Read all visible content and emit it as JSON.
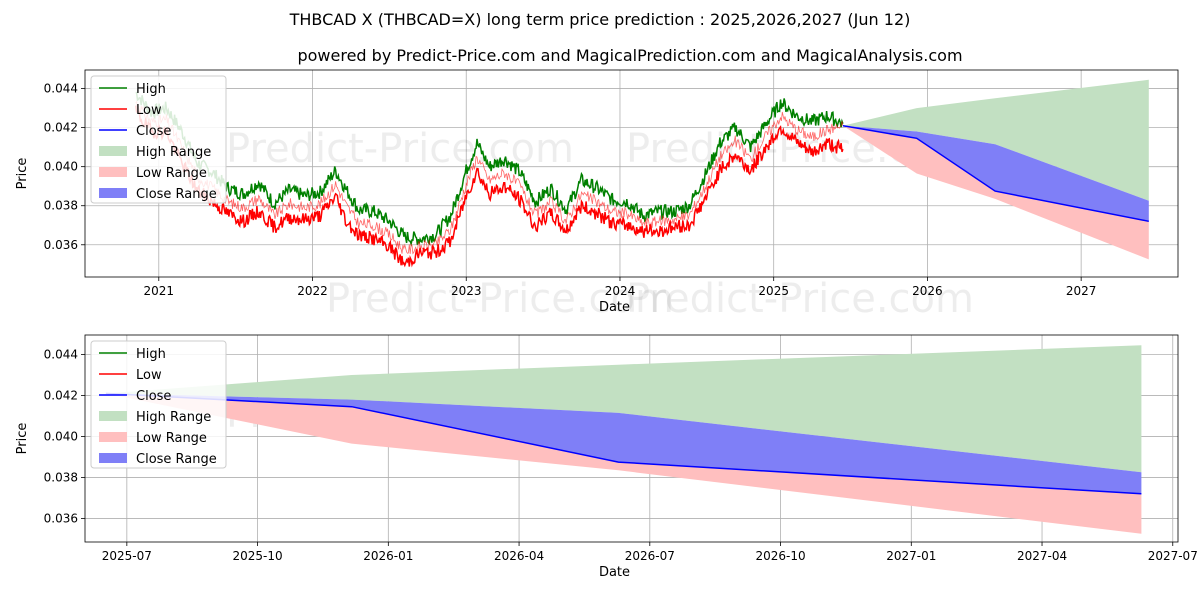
{
  "title": "THBCAD X (THBCAD=X) long term price prediction : 2025,2026,2027 (Jun 12)",
  "subtitle": "powered by Predict-Price.com and MagicalPrediction.com and MagicalAnalysis.com",
  "watermark": "Predict-Price.com",
  "colors": {
    "high": "#008000",
    "low": "#ff0000",
    "close": "#0000ff",
    "high_range": "#c2e0c2",
    "low_range": "#ffbfbf",
    "close_range": "#7f7ff7",
    "grid": "#b0b0b0"
  },
  "chart_data": [
    {
      "type": "line",
      "name": "long-term",
      "xlabel": "Date",
      "ylabel": "Price",
      "xlim": [
        2020.52,
        2027.63
      ],
      "ylim": [
        0.03435,
        0.04495
      ],
      "xticks": [
        {
          "value": 2021,
          "label": "2021"
        },
        {
          "value": 2022,
          "label": "2022"
        },
        {
          "value": 2023,
          "label": "2023"
        },
        {
          "value": 2024,
          "label": "2024"
        },
        {
          "value": 2025,
          "label": "2025"
        },
        {
          "value": 2026,
          "label": "2026"
        },
        {
          "value": 2027,
          "label": "2027"
        }
      ],
      "yticks": [
        {
          "value": 0.036,
          "label": "0.036"
        },
        {
          "value": 0.038,
          "label": "0.038"
        },
        {
          "value": 0.04,
          "label": "0.040"
        },
        {
          "value": 0.042,
          "label": "0.042"
        },
        {
          "value": 0.044,
          "label": "0.044"
        }
      ],
      "legend": [
        "High",
        "Low",
        "Close",
        "High Range",
        "Low Range",
        "Close Range"
      ],
      "legend_position": "upper-left",
      "history": {
        "x": [
          2020.85,
          2020.95,
          2021.05,
          2021.15,
          2021.25,
          2021.35,
          2021.45,
          2021.55,
          2021.65,
          2021.75,
          2021.85,
          2021.95,
          2022.05,
          2022.15,
          2022.22,
          2022.3,
          2022.4,
          2022.5,
          2022.6,
          2022.7,
          2022.8,
          2022.9,
          2023.0,
          2023.07,
          2023.15,
          2023.25,
          2023.35,
          2023.45,
          2023.55,
          2023.65,
          2023.75,
          2023.85,
          2023.95,
          2024.05,
          2024.15,
          2024.25,
          2024.35,
          2024.45,
          2024.55,
          2024.65,
          2024.75,
          2024.85,
          2024.95,
          2025.05,
          2025.15,
          2025.25,
          2025.35,
          2025.45
        ],
        "high": [
          0.0438,
          0.0428,
          0.043,
          0.0418,
          0.0402,
          0.0397,
          0.0389,
          0.0386,
          0.0392,
          0.0381,
          0.0388,
          0.0385,
          0.0387,
          0.0398,
          0.0388,
          0.0378,
          0.0377,
          0.0372,
          0.0364,
          0.0363,
          0.0365,
          0.0375,
          0.0398,
          0.0412,
          0.04,
          0.0404,
          0.0397,
          0.0382,
          0.0389,
          0.0378,
          0.0393,
          0.0389,
          0.0383,
          0.0382,
          0.0375,
          0.0377,
          0.0377,
          0.038,
          0.0395,
          0.0412,
          0.042,
          0.041,
          0.0422,
          0.0433,
          0.0426,
          0.0423,
          0.0426,
          0.0422
        ],
        "low": [
          0.0428,
          0.0418,
          0.0418,
          0.0402,
          0.0388,
          0.0382,
          0.0376,
          0.0372,
          0.0377,
          0.0369,
          0.0374,
          0.0373,
          0.0375,
          0.0385,
          0.0372,
          0.0365,
          0.0363,
          0.0359,
          0.035,
          0.0356,
          0.0356,
          0.0362,
          0.0385,
          0.0398,
          0.0386,
          0.039,
          0.0383,
          0.0369,
          0.0376,
          0.0367,
          0.038,
          0.0376,
          0.0371,
          0.037,
          0.0367,
          0.0367,
          0.0369,
          0.037,
          0.0383,
          0.0398,
          0.0406,
          0.0398,
          0.041,
          0.042,
          0.0412,
          0.0407,
          0.0412,
          0.0409
        ],
        "close": [
          0.0433,
          0.0423,
          0.0424,
          0.041,
          0.0395,
          0.0389,
          0.0382,
          0.0379,
          0.0384,
          0.0375,
          0.0381,
          0.0379,
          0.0381,
          0.0391,
          0.038,
          0.0371,
          0.037,
          0.0365,
          0.0357,
          0.0359,
          0.036,
          0.0368,
          0.0391,
          0.0405,
          0.0393,
          0.0397,
          0.039,
          0.0375,
          0.0382,
          0.0372,
          0.0386,
          0.0382,
          0.0377,
          0.0376,
          0.0371,
          0.0372,
          0.0373,
          0.0375,
          0.0389,
          0.0405,
          0.0413,
          0.0404,
          0.0416,
          0.0426,
          0.0419,
          0.0415,
          0.0419,
          0.0421
        ]
      },
      "forecast": {
        "x": [
          2025.45,
          2025.93,
          2026.44,
          2027.44
        ],
        "close": [
          0.0421,
          0.04145,
          0.03875,
          0.0372
        ],
        "close_range_upper": [
          0.0421,
          0.0418,
          0.04115,
          0.03825
        ],
        "close_range_lower": [
          0.0421,
          0.04145,
          0.03875,
          0.0372
        ],
        "high_range_upper": [
          0.0421,
          0.043,
          0.0435,
          0.04445
        ],
        "low_range_lower": [
          0.0421,
          0.03965,
          0.03835,
          0.03525
        ]
      }
    },
    {
      "type": "line",
      "name": "forecast-zoom",
      "xlabel": "Date",
      "ylabel": "Price",
      "xlim": [
        2025.42,
        2027.51
      ],
      "ylim": [
        0.03485,
        0.04495
      ],
      "xticks": [
        {
          "value": 2025.5,
          "label": "2025-07"
        },
        {
          "value": 2025.75,
          "label": "2025-10"
        },
        {
          "value": 2026.0,
          "label": "2026-01"
        },
        {
          "value": 2026.25,
          "label": "2026-04"
        },
        {
          "value": 2026.5,
          "label": "2026-07"
        },
        {
          "value": 2026.75,
          "label": "2026-10"
        },
        {
          "value": 2027.0,
          "label": "2027-01"
        },
        {
          "value": 2027.25,
          "label": "2027-04"
        },
        {
          "value": 2027.5,
          "label": "2027-07"
        }
      ],
      "yticks": [
        {
          "value": 0.036,
          "label": "0.036"
        },
        {
          "value": 0.038,
          "label": "0.038"
        },
        {
          "value": 0.04,
          "label": "0.040"
        },
        {
          "value": 0.042,
          "label": "0.042"
        },
        {
          "value": 0.044,
          "label": "0.044"
        }
      ],
      "legend": [
        "High",
        "Low",
        "Close",
        "High Range",
        "Low Range",
        "Close Range"
      ],
      "legend_position": "upper-left",
      "forecast": {
        "x": [
          2025.46,
          2025.93,
          2026.44,
          2027.44
        ],
        "close": [
          0.0421,
          0.04145,
          0.03875,
          0.0372
        ],
        "close_range_upper": [
          0.0421,
          0.0418,
          0.04115,
          0.03825
        ],
        "close_range_lower": [
          0.0421,
          0.04145,
          0.03875,
          0.0372
        ],
        "high_range_upper": [
          0.0421,
          0.043,
          0.0435,
          0.04445
        ],
        "low_range_lower": [
          0.0421,
          0.03965,
          0.03835,
          0.03525
        ]
      }
    }
  ]
}
